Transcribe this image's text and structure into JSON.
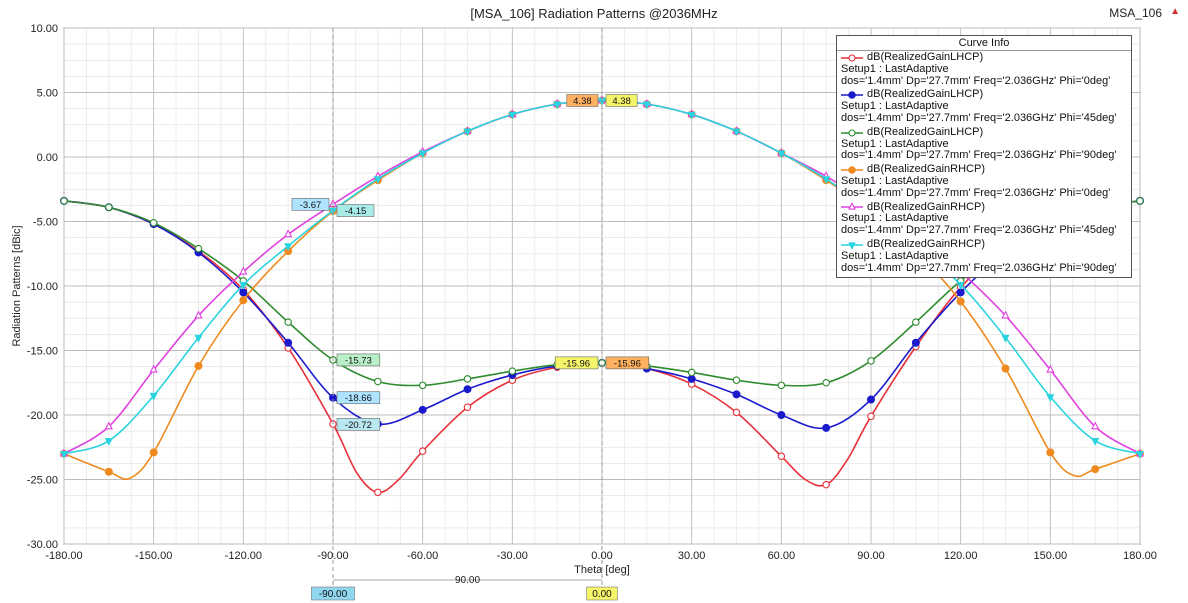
{
  "title": "[MSA_106] Radiation Patterns @2036MHz",
  "project_label": "MSA_106",
  "chart_data": {
    "type": "line",
    "title": "[MSA_106] Radiation Patterns @2036MHz",
    "xlabel": "Theta [deg]",
    "ylabel": "Radiation Patterns [dBic]",
    "xlim": [
      -180,
      180
    ],
    "ylim": [
      -30,
      10
    ],
    "x_ticks": [
      "-180.00",
      "-150.00",
      "-120.00",
      "-90.00",
      "-60.00",
      "-30.00",
      "0.00",
      "30.00",
      "60.00",
      "90.00",
      "120.00",
      "150.00",
      "180.00"
    ],
    "y_ticks": [
      "10.00",
      "5.00",
      "0.00",
      "-5.00",
      "-10.00",
      "-15.00",
      "-20.00",
      "-25.00",
      "-30.00"
    ],
    "grid": true,
    "legend": {
      "title": "Curve Info",
      "placement": "top-right"
    },
    "series": [
      {
        "name": "dB(RealizedGainLHCP)",
        "setup": "Setup1 : LastAdaptive",
        "params": "dos='1.4mm' Dp='27.7mm' Freq='2.036GHz' Phi='0deg'",
        "color": "#e8303a",
        "marker": "circle-open",
        "x": [
          -180,
          -165,
          -150,
          -135,
          -120,
          -105,
          -90,
          -82,
          -75,
          -68,
          -60,
          -45,
          -30,
          -15,
          0,
          15,
          30,
          45,
          60,
          68,
          75,
          82,
          90,
          105,
          120,
          135,
          150,
          165,
          180
        ],
        "y": [
          -3.4,
          -3.9,
          -5.2,
          -7.3,
          -10.3,
          -14.8,
          -20.7,
          -24.5,
          -26.0,
          -25.0,
          -22.8,
          -19.4,
          -17.3,
          -16.3,
          -15.96,
          -16.4,
          -17.6,
          -19.8,
          -23.2,
          -25.0,
          -25.4,
          -23.5,
          -20.1,
          -14.7,
          -10.1,
          -7.0,
          -5.0,
          -3.9,
          -3.4
        ]
      },
      {
        "name": "dB(RealizedGainLHCP)",
        "setup": "Setup1 : LastAdaptive",
        "params": "dos='1.4mm' Dp='27.7mm' Freq='2.036GHz' Phi='45deg'",
        "color": "#1a1acc",
        "marker": "circle-filled",
        "x": [
          -180,
          -165,
          -150,
          -135,
          -120,
          -105,
          -90,
          -75,
          -60,
          -45,
          -30,
          -15,
          0,
          15,
          30,
          45,
          60,
          75,
          90,
          105,
          120,
          135,
          150,
          165,
          180
        ],
        "y": [
          -3.4,
          -3.9,
          -5.2,
          -7.4,
          -10.5,
          -14.4,
          -18.66,
          -20.7,
          -19.6,
          -18.0,
          -16.9,
          -16.2,
          -15.96,
          -16.4,
          -17.2,
          -18.4,
          -20.0,
          -21.0,
          -18.8,
          -14.4,
          -10.5,
          -7.3,
          -5.1,
          -3.9,
          -3.4
        ]
      },
      {
        "name": "dB(RealizedGainLHCP)",
        "setup": "Setup1 : LastAdaptive",
        "params": "dos='1.4mm' Dp='27.7mm' Freq='2.036GHz' Phi='90deg'",
        "color": "#2e8b2e",
        "marker": "circle-open",
        "x": [
          -180,
          -165,
          -150,
          -135,
          -120,
          -105,
          -90,
          -75,
          -60,
          -45,
          -30,
          -15,
          0,
          15,
          30,
          45,
          60,
          75,
          90,
          105,
          120,
          135,
          150,
          165,
          180
        ],
        "y": [
          -3.4,
          -3.9,
          -5.1,
          -7.1,
          -9.6,
          -12.8,
          -15.73,
          -17.4,
          -17.7,
          -17.2,
          -16.6,
          -16.1,
          -15.96,
          -16.2,
          -16.7,
          -17.3,
          -17.7,
          -17.5,
          -15.8,
          -12.8,
          -9.6,
          -7.1,
          -5.1,
          -3.9,
          -3.4
        ]
      },
      {
        "name": "dB(RealizedGainRHCP)",
        "setup": "Setup1 : LastAdaptive",
        "params": "dos='1.4mm' Dp='27.7mm' Freq='2.036GHz' Phi='0deg'",
        "color": "#ef8a1e",
        "marker": "circle-filled",
        "x": [
          -180,
          -165,
          -158,
          -150,
          -135,
          -120,
          -105,
          -90,
          -75,
          -60,
          -45,
          -30,
          -15,
          0,
          15,
          30,
          45,
          60,
          75,
          90,
          105,
          120,
          135,
          150,
          158,
          165,
          180
        ],
        "y": [
          -23.0,
          -24.4,
          -24.9,
          -22.9,
          -16.2,
          -11.1,
          -7.3,
          -4.2,
          -1.8,
          0.3,
          2.0,
          3.3,
          4.1,
          4.38,
          4.1,
          3.3,
          2.0,
          0.3,
          -1.8,
          -4.2,
          -7.3,
          -11.2,
          -16.4,
          -22.9,
          -24.7,
          -24.2,
          -23.0
        ]
      },
      {
        "name": "dB(RealizedGainRHCP)",
        "setup": "Setup1 : LastAdaptive",
        "params": "dos='1.4mm' Dp='27.7mm' Freq='2.036GHz' Phi='45deg'",
        "color": "#e040e0",
        "marker": "triangle-open",
        "x": [
          -180,
          -165,
          -150,
          -135,
          -120,
          -105,
          -90,
          -75,
          -60,
          -45,
          -30,
          -15,
          0,
          15,
          30,
          45,
          60,
          75,
          90,
          105,
          120,
          135,
          150,
          165,
          180
        ],
        "y": [
          -23.0,
          -20.9,
          -16.5,
          -12.3,
          -8.9,
          -6.0,
          -3.67,
          -1.5,
          0.4,
          2.0,
          3.3,
          4.1,
          4.38,
          4.1,
          3.3,
          2.0,
          0.3,
          -1.5,
          -3.7,
          -6.0,
          -8.9,
          -12.3,
          -16.5,
          -20.9,
          -23.0
        ]
      },
      {
        "name": "dB(RealizedGainRHCP)",
        "setup": "Setup1 : LastAdaptive",
        "params": "dos='1.4mm' Dp='27.7mm' Freq='2.036GHz' Phi='90deg'",
        "color": "#29d3e0",
        "marker": "triangle-down-filled",
        "x": [
          -180,
          -165,
          -150,
          -135,
          -120,
          -105,
          -90,
          -75,
          -60,
          -45,
          -30,
          -15,
          0,
          15,
          30,
          45,
          60,
          75,
          90,
          105,
          120,
          135,
          150,
          165,
          180
        ],
        "y": [
          -23.0,
          -22.0,
          -18.5,
          -14.0,
          -9.9,
          -6.9,
          -4.15,
          -1.7,
          0.3,
          2.0,
          3.3,
          4.1,
          4.38,
          4.1,
          3.3,
          2.0,
          0.3,
          -1.7,
          -4.2,
          -6.9,
          -9.9,
          -14.0,
          -18.6,
          -22.0,
          -23.0
        ]
      }
    ],
    "annotations": [
      {
        "x": -90,
        "y": -3.67,
        "label": "-3.67",
        "color": "#aee4ff",
        "side": "left"
      },
      {
        "x": -90,
        "y": -4.15,
        "label": "-4.15",
        "color": "#a8ece8",
        "side": "right"
      },
      {
        "x": -90,
        "y": -15.73,
        "label": "-15.73",
        "color": "#b9f0c8",
        "side": "right"
      },
      {
        "x": -90,
        "y": -18.66,
        "label": "-18.66",
        "color": "#aee4ff",
        "side": "right"
      },
      {
        "x": -90,
        "y": -20.72,
        "label": "-20.72",
        "color": "#b9e8f0",
        "side": "right"
      },
      {
        "x": 0,
        "y": 4.38,
        "label": "4.38",
        "color": "#ffb060",
        "side": "left"
      },
      {
        "x": 0,
        "y": 4.38,
        "label": "4.38",
        "color": "#f5f56a",
        "side": "right"
      },
      {
        "x": 0,
        "y": -15.96,
        "label": "-15.96",
        "color": "#f5f56a",
        "side": "left"
      },
      {
        "x": 0,
        "y": -15.96,
        "label": "-15.96",
        "color": "#ffb060",
        "side": "right"
      }
    ],
    "markers": [
      {
        "x": -90,
        "label": "-90.00",
        "color": "#8fd8f0"
      },
      {
        "x": 0,
        "label": "0.00",
        "color": "#f5f56a"
      }
    ],
    "delta": {
      "label": "90.00"
    }
  }
}
